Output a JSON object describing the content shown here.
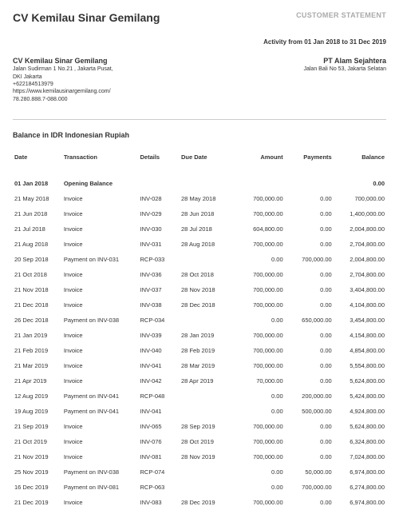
{
  "header": {
    "company": "CV Kemilau Sinar Gemilang",
    "docType": "CUSTOMER STATEMENT",
    "activity": "Activity from 01 Jan 2018 to 31 Dec 2019"
  },
  "from": {
    "name": "CV Kemilau Sinar Gemilang",
    "lines": [
      "Jalan Sudirman 1 No.21 , Jakarta Pusat,",
      "DKI Jakarta",
      "+622184513979",
      "https://www.kemilausinargemilang.com/",
      "78.280.888.7-088.000"
    ]
  },
  "to": {
    "name": "PT Alam Sejahtera",
    "lines": [
      "Jalan Bali No 53, Jakarta Selatan"
    ]
  },
  "table": {
    "title": "Balance in IDR Indonesian Rupiah",
    "headers": {
      "date": "Date",
      "transaction": "Transaction",
      "details": "Details",
      "due": "Due Date",
      "amount": "Amount",
      "payments": "Payments",
      "balance": "Balance"
    },
    "opening": {
      "date": "01 Jan 2018",
      "label": "Opening Balance",
      "balance": "0.00"
    },
    "rows": [
      {
        "date": "21 May 2018",
        "trans": "Invoice",
        "det": "INV-028",
        "due": "28 May 2018",
        "amt": "700,000.00",
        "pay": "0.00",
        "bal": "700,000.00"
      },
      {
        "date": "21 Jun 2018",
        "trans": "Invoice",
        "det": "INV-029",
        "due": "28 Jun 2018",
        "amt": "700,000.00",
        "pay": "0.00",
        "bal": "1,400,000.00"
      },
      {
        "date": "21 Jul 2018",
        "trans": "Invoice",
        "det": "INV-030",
        "due": "28 Jul 2018",
        "amt": "604,800.00",
        "pay": "0.00",
        "bal": "2,004,800.00"
      },
      {
        "date": "21 Aug 2018",
        "trans": "Invoice",
        "det": "INV-031",
        "due": "28 Aug 2018",
        "amt": "700,000.00",
        "pay": "0.00",
        "bal": "2,704,800.00"
      },
      {
        "date": "20 Sep 2018",
        "trans": "Payment on INV-031",
        "det": "RCP-033",
        "due": "",
        "amt": "0.00",
        "pay": "700,000.00",
        "bal": "2,004,800.00"
      },
      {
        "date": "21 Oct 2018",
        "trans": "Invoice",
        "det": "INV-036",
        "due": "28 Oct 2018",
        "amt": "700,000.00",
        "pay": "0.00",
        "bal": "2,704,800.00"
      },
      {
        "date": "21 Nov 2018",
        "trans": "Invoice",
        "det": "INV-037",
        "due": "28 Nov 2018",
        "amt": "700,000.00",
        "pay": "0.00",
        "bal": "3,404,800.00"
      },
      {
        "date": "21 Dec 2018",
        "trans": "Invoice",
        "det": "INV-038",
        "due": "28 Dec 2018",
        "amt": "700,000.00",
        "pay": "0.00",
        "bal": "4,104,800.00"
      },
      {
        "date": "26 Dec 2018",
        "trans": "Payment on INV-038",
        "det": "RCP-034",
        "due": "",
        "amt": "0.00",
        "pay": "650,000.00",
        "bal": "3,454,800.00"
      },
      {
        "date": "21 Jan 2019",
        "trans": "Invoice",
        "det": "INV-039",
        "due": "28 Jan 2019",
        "amt": "700,000.00",
        "pay": "0.00",
        "bal": "4,154,800.00"
      },
      {
        "date": "21 Feb 2019",
        "trans": "Invoice",
        "det": "INV-040",
        "due": "28 Feb 2019",
        "amt": "700,000.00",
        "pay": "0.00",
        "bal": "4,854,800.00"
      },
      {
        "date": "21 Mar 2019",
        "trans": "Invoice",
        "det": "INV-041",
        "due": "28 Mar 2019",
        "amt": "700,000.00",
        "pay": "0.00",
        "bal": "5,554,800.00"
      },
      {
        "date": "21 Apr 2019",
        "trans": "Invoice",
        "det": "INV-042",
        "due": "28 Apr 2019",
        "amt": "70,000.00",
        "pay": "0.00",
        "bal": "5,624,800.00"
      },
      {
        "date": "12 Aug 2019",
        "trans": "Payment on INV-041",
        "det": "RCP-048",
        "due": "",
        "amt": "0.00",
        "pay": "200,000.00",
        "bal": "5,424,800.00"
      },
      {
        "date": "19 Aug 2019",
        "trans": "Payment on INV-041",
        "det": "INV-041",
        "due": "",
        "amt": "0.00",
        "pay": "500,000.00",
        "bal": "4,924,800.00"
      },
      {
        "date": "21 Sep 2019",
        "trans": "Invoice",
        "det": "INV-065",
        "due": "28 Sep 2019",
        "amt": "700,000.00",
        "pay": "0.00",
        "bal": "5,624,800.00"
      },
      {
        "date": "21 Oct 2019",
        "trans": "Invoice",
        "det": "INV-076",
        "due": "28 Oct 2019",
        "amt": "700,000.00",
        "pay": "0.00",
        "bal": "6,324,800.00"
      },
      {
        "date": "21 Nov 2019",
        "trans": "Invoice",
        "det": "INV-081",
        "due": "28 Nov 2019",
        "amt": "700,000.00",
        "pay": "0.00",
        "bal": "7,024,800.00"
      },
      {
        "date": "25 Nov 2019",
        "trans": "Payment on INV-038",
        "det": "RCP-074",
        "due": "",
        "amt": "0.00",
        "pay": "50,000.00",
        "bal": "6,974,800.00"
      },
      {
        "date": "16 Dec 2019",
        "trans": "Payment on INV-081",
        "det": "RCP-063",
        "due": "",
        "amt": "0.00",
        "pay": "700,000.00",
        "bal": "6,274,800.00"
      },
      {
        "date": "21 Dec 2019",
        "trans": "Invoice",
        "det": "INV-083",
        "due": "28 Dec 2019",
        "amt": "700,000.00",
        "pay": "0.00",
        "bal": "6,974,800.00"
      }
    ]
  }
}
